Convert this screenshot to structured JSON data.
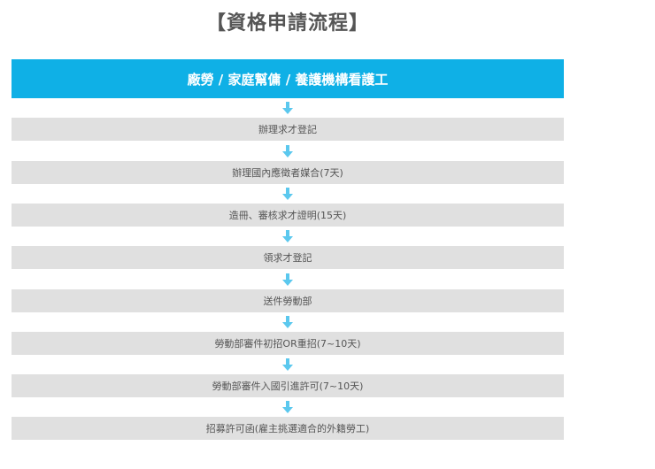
{
  "title": "【資格申請流程】",
  "header": "廠勞 / 家庭幫傭 / 養護機構看護工",
  "arrow_color": "#5bc8ee",
  "steps": [
    "辦理求才登記",
    "辦理國內應徵者媒合(7天)",
    "造冊、審核求才證明(15天)",
    "領求才登記",
    "送件勞動部",
    "勞動部審件初招OR重招(7~10天)",
    "勞動部審件入國引進許可(7~10天)",
    "招募許可函(雇主挑選適合的外籍勞工)"
  ]
}
